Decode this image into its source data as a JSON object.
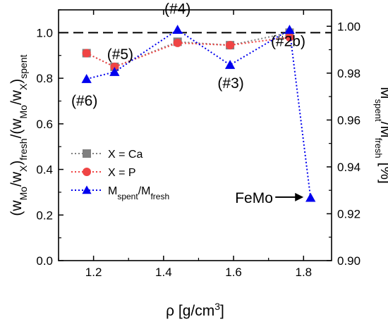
{
  "chart_data": {
    "type": "line",
    "x": [
      1.18,
      1.26,
      1.44,
      1.59,
      1.76,
      1.82
    ],
    "xlim": [
      1.1,
      1.88
    ],
    "xticks": [
      "1.2",
      "1.4",
      "1.6",
      "1.8"
    ],
    "xtick_values": [
      1.2,
      1.4,
      1.6,
      1.8
    ],
    "ylim_left": [
      0.0,
      1.1
    ],
    "yticks_left": [
      "0.0",
      "0.2",
      "0.4",
      "0.6",
      "0.8",
      "1.0"
    ],
    "ytick_values_left": [
      0.0,
      0.2,
      0.4,
      0.6,
      0.8,
      1.0
    ],
    "ylim_right": [
      0.9,
      1.007
    ],
    "yticks_right": [
      "0.90",
      "0.92",
      "0.94",
      "0.96",
      "0.98",
      "1.00"
    ],
    "ytick_values_right": [
      0.9,
      0.92,
      0.94,
      0.96,
      0.98,
      1.0
    ],
    "reference_line": {
      "y": 1.0,
      "style": "dashed",
      "color": "#000000"
    },
    "xlabel": {
      "main": "ρ [g/cm",
      "sup": "3",
      "end": "]"
    },
    "ylabel_left": {
      "p1": "(w",
      "s1": "Mo",
      "p2": "/w",
      "s2": "X",
      "p3": ")",
      "s3": "fresh",
      "p4": "/(w",
      "s4": "Mo",
      "p5": "/w",
      "s5": "X",
      "p6": ")",
      "s6": "spent"
    },
    "ylabel_right": {
      "p1": "M",
      "s1": "spent",
      "p2": "/M",
      "s2": "fresh",
      "p3": " [%]"
    },
    "series": [
      {
        "name": "X = Ca",
        "axis": "left",
        "marker": "square",
        "color": "#808080",
        "x": [
          1.18,
          1.26,
          1.44,
          1.59,
          1.76
        ],
        "values": [
          0.91,
          0.85,
          0.96,
          0.945,
          1.0
        ]
      },
      {
        "name": "X = P",
        "axis": "left",
        "marker": "circle",
        "color": "#ef4444",
        "x": [
          1.18,
          1.26,
          1.44,
          1.59,
          1.76
        ],
        "values": [
          0.91,
          0.85,
          0.955,
          0.945,
          0.98
        ]
      },
      {
        "name": "M_spent/M_fresh",
        "axis": "right",
        "marker": "triangle",
        "color": "#0000ee",
        "x": [
          1.18,
          1.26,
          1.44,
          1.59,
          1.76,
          1.82
        ],
        "values": [
          0.9775,
          0.9805,
          0.9985,
          0.9835,
          0.9985,
          0.9268
        ]
      }
    ],
    "legend": {
      "position": "lower-left",
      "entries": [
        {
          "text": "X = Ca"
        },
        {
          "text": "X = P"
        },
        {
          "main": "M",
          "sub1": "spent",
          "mid": "/M",
          "sub2": "fresh"
        }
      ]
    },
    "annotations": [
      {
        "text": "(#6)",
        "x": 1.18
      },
      {
        "text": "(#5)",
        "x": 1.26
      },
      {
        "text": "(#4)",
        "x": 1.44
      },
      {
        "text": "(#3)",
        "x": 1.59
      },
      {
        "text": "(#2b)",
        "x": 1.76
      },
      {
        "text": "FeMo",
        "x": 1.82,
        "arrow": true
      }
    ]
  }
}
